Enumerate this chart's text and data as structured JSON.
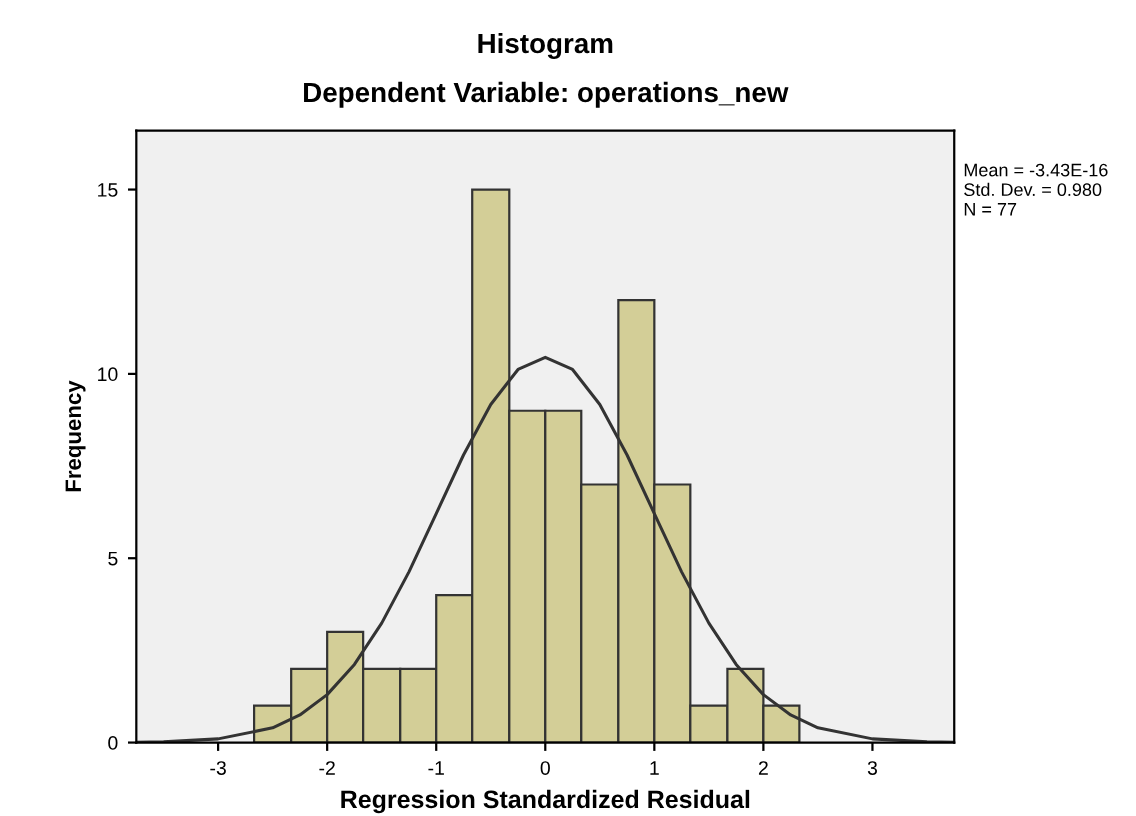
{
  "chart_data": {
    "type": "histogram",
    "title": "Histogram",
    "subtitle": "Dependent Variable: operations_new",
    "xlabel": "Regression Standardized Residual",
    "ylabel": "Frequency",
    "bins": [
      -2.67,
      -2.33,
      -2,
      -1.67,
      -1.33,
      -1,
      -0.67,
      -0.33,
      0,
      0.33,
      0.67,
      1,
      1.33,
      1.67,
      2,
      2.33
    ],
    "values": [
      1,
      2,
      3,
      2,
      2,
      4,
      15,
      9,
      9,
      7,
      12,
      7,
      1,
      2,
      1
    ],
    "color": "#d3ce97",
    "series": [
      {
        "type": "line",
        "color": "#333333",
        "x": [
          -3.75,
          -3.5,
          -3,
          -2.5,
          -2.25,
          -2,
          -1.75,
          -1.5,
          -1.25,
          -1,
          -0.75,
          -0.5,
          -0.25,
          0,
          0.25,
          0.5,
          0.75,
          1,
          1.25,
          1.5,
          1.75,
          2,
          2.25,
          2.5,
          3,
          3.5,
          3.75
        ],
        "values": [
          0.01,
          0.02,
          0.1,
          0.4,
          0.75,
          1.3,
          2.12,
          3.24,
          4.63,
          6.21,
          7.8,
          9.17,
          10.12,
          10.45,
          10.12,
          9.17,
          7.8,
          6.21,
          4.63,
          3.24,
          2.12,
          1.3,
          0.75,
          0.4,
          0.1,
          0.02,
          0.01
        ]
      }
    ],
    "xlim": [
      -3.75,
      3.75
    ],
    "ylim": [
      0,
      16.6
    ],
    "xticks": [
      {
        "value": -3,
        "label": "-3"
      },
      {
        "value": -2,
        "label": "-2"
      },
      {
        "value": -1,
        "label": "-1"
      },
      0,
      1,
      2,
      3
    ],
    "yticks": [
      0,
      5,
      10,
      15
    ],
    "annotations": [
      "Mean = -3.43E-16",
      "Std. Dev. = 0.980",
      "N = 77"
    ],
    "grid": false,
    "legend": false
  }
}
